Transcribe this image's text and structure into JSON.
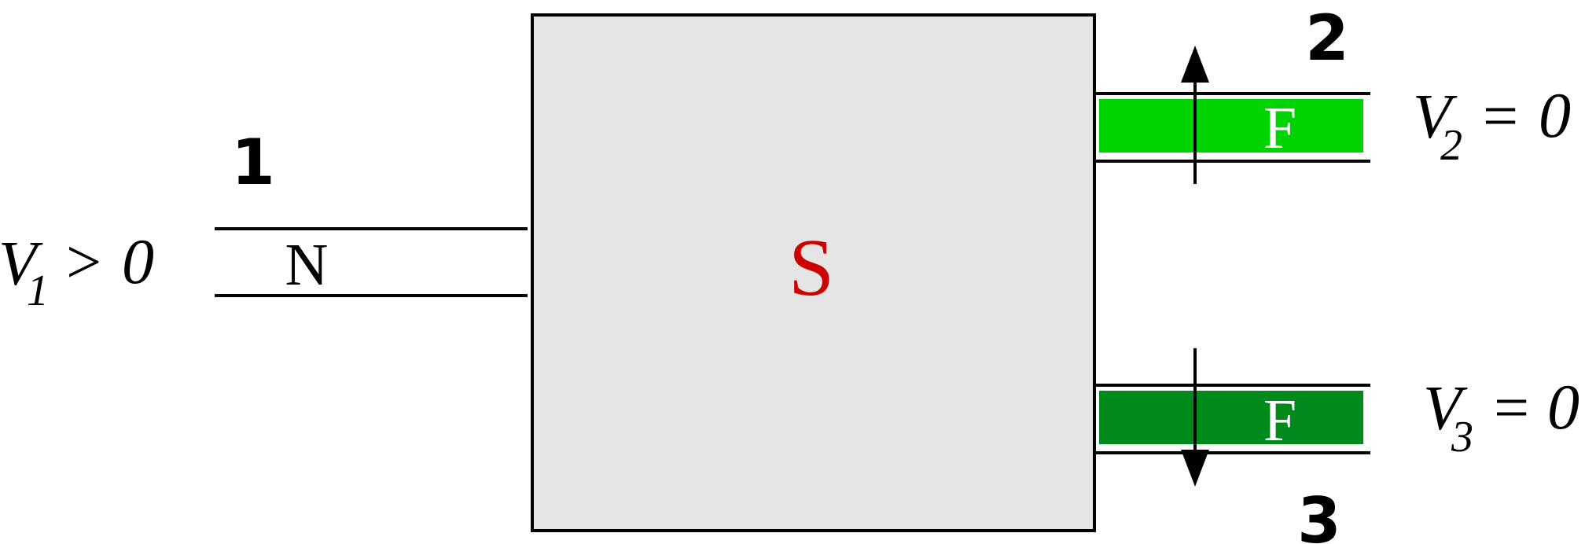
{
  "region": {
    "label": "S",
    "fill": "#e5e5e5",
    "label_color": "#cc0000"
  },
  "leads": [
    {
      "number": "1",
      "material": "N",
      "voltage_symbol": "V",
      "voltage_sub": "1",
      "relation": ">",
      "voltage_value": "0"
    },
    {
      "number": "2",
      "material": "F",
      "fill": "#00d400",
      "voltage_symbol": "V",
      "voltage_sub": "2",
      "relation": "=",
      "voltage_value": "0"
    },
    {
      "number": "3",
      "material": "F",
      "fill": "#008a1c",
      "voltage_symbol": "V",
      "voltage_sub": "3",
      "relation": "=",
      "voltage_value": "0"
    }
  ],
  "magnetization": {
    "lead_2": "up",
    "lead_3": "down"
  }
}
